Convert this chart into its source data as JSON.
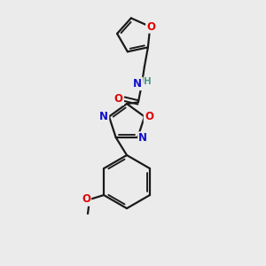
{
  "background_color": "#ebebeb",
  "bond_color": "#1a1a1a",
  "atom_colors": {
    "O": "#e00000",
    "N": "#1010cc",
    "H": "#4a9a8a",
    "C": "#1a1a1a"
  },
  "font_size_atom": 8.5,
  "figsize": [
    3.0,
    3.0
  ],
  "dpi": 100
}
